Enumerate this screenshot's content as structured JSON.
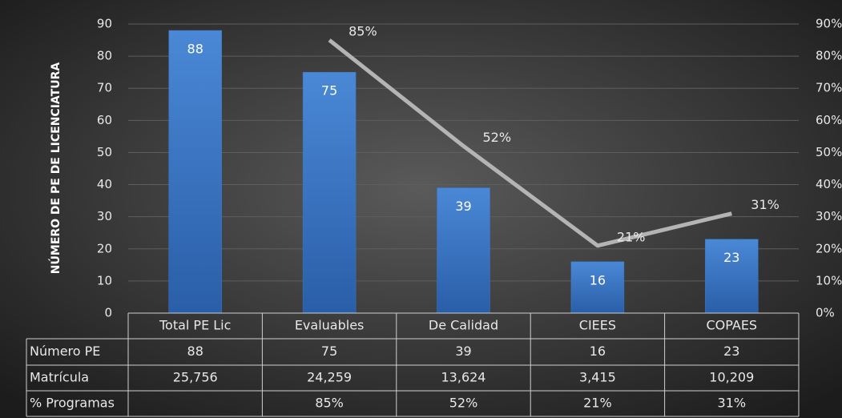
{
  "chart_data": {
    "type": "bar",
    "y_label": "NÚMERO DE PE DE LICENCIATURA",
    "categories": [
      "Total PE Lic",
      "Evaluables",
      "De Calidad",
      "CIEES",
      "COPAES"
    ],
    "series": [
      {
        "name": "Número PE",
        "type": "bar",
        "color": "#3b78c8",
        "values": [
          88,
          75,
          39,
          16,
          23
        ]
      },
      {
        "name": "% Programas",
        "type": "line",
        "axis": "y2",
        "color": "#b4b4b4",
        "values": [
          null,
          85,
          52,
          21,
          31
        ],
        "value_labels": [
          null,
          "85%",
          "52%",
          "21%",
          "31%"
        ]
      }
    ],
    "table_rows": [
      {
        "name": "Matrícula",
        "values": [
          25756,
          24259,
          13624,
          3415,
          10209
        ],
        "value_labels": [
          "25,756",
          "24,259",
          "13,624",
          "3,415",
          "10,209"
        ]
      }
    ],
    "ylim": [
      0,
      90
    ],
    "yticks": [
      0,
      10,
      20,
      30,
      40,
      50,
      60,
      70,
      80,
      90
    ],
    "y2lim": [
      0,
      90
    ],
    "y2ticks": [
      {
        "value": 0,
        "label": "0%"
      },
      {
        "value": 10,
        "label": "10%"
      },
      {
        "value": 20,
        "label": "20%"
      },
      {
        "value": 30,
        "label": "30%"
      },
      {
        "value": 40,
        "label": "40%"
      },
      {
        "value": 50,
        "label": "50%"
      },
      {
        "value": 60,
        "label": "60%"
      },
      {
        "value": 70,
        "label": "70%"
      },
      {
        "value": 80,
        "label": "80%"
      },
      {
        "value": 90,
        "label": "90%"
      }
    ],
    "grid": true
  }
}
